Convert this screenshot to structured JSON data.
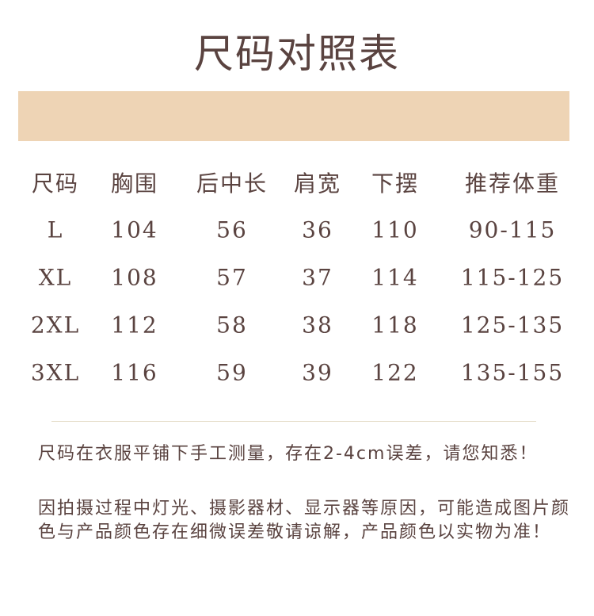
{
  "title": "尺码对照表",
  "colors": {
    "band": "#eed4b5",
    "text": "#5a4340",
    "divider": "#e5dcc8"
  },
  "table": {
    "headers": [
      "尺码",
      "胸围",
      "后中长",
      "肩宽",
      "下摆",
      "推荐体重"
    ],
    "rows": [
      [
        "L",
        "104",
        "56",
        "36",
        "110",
        "90-115"
      ],
      [
        "XL",
        "108",
        "57",
        "37",
        "114",
        "115-125"
      ],
      [
        "2XL",
        "112",
        "58",
        "38",
        "118",
        "125-135"
      ],
      [
        "3XL",
        "116",
        "59",
        "39",
        "122",
        "135-155"
      ]
    ]
  },
  "notes": [
    "尺码在衣服平铺下手工测量，存在2-4cm误差，请您知悉！",
    "因拍摄过程中灯光、摄影器材、显示器等原因，可能造成图片颜色与产品颜色存在细微误差敬请谅解，产品颜色以实物为准！"
  ]
}
